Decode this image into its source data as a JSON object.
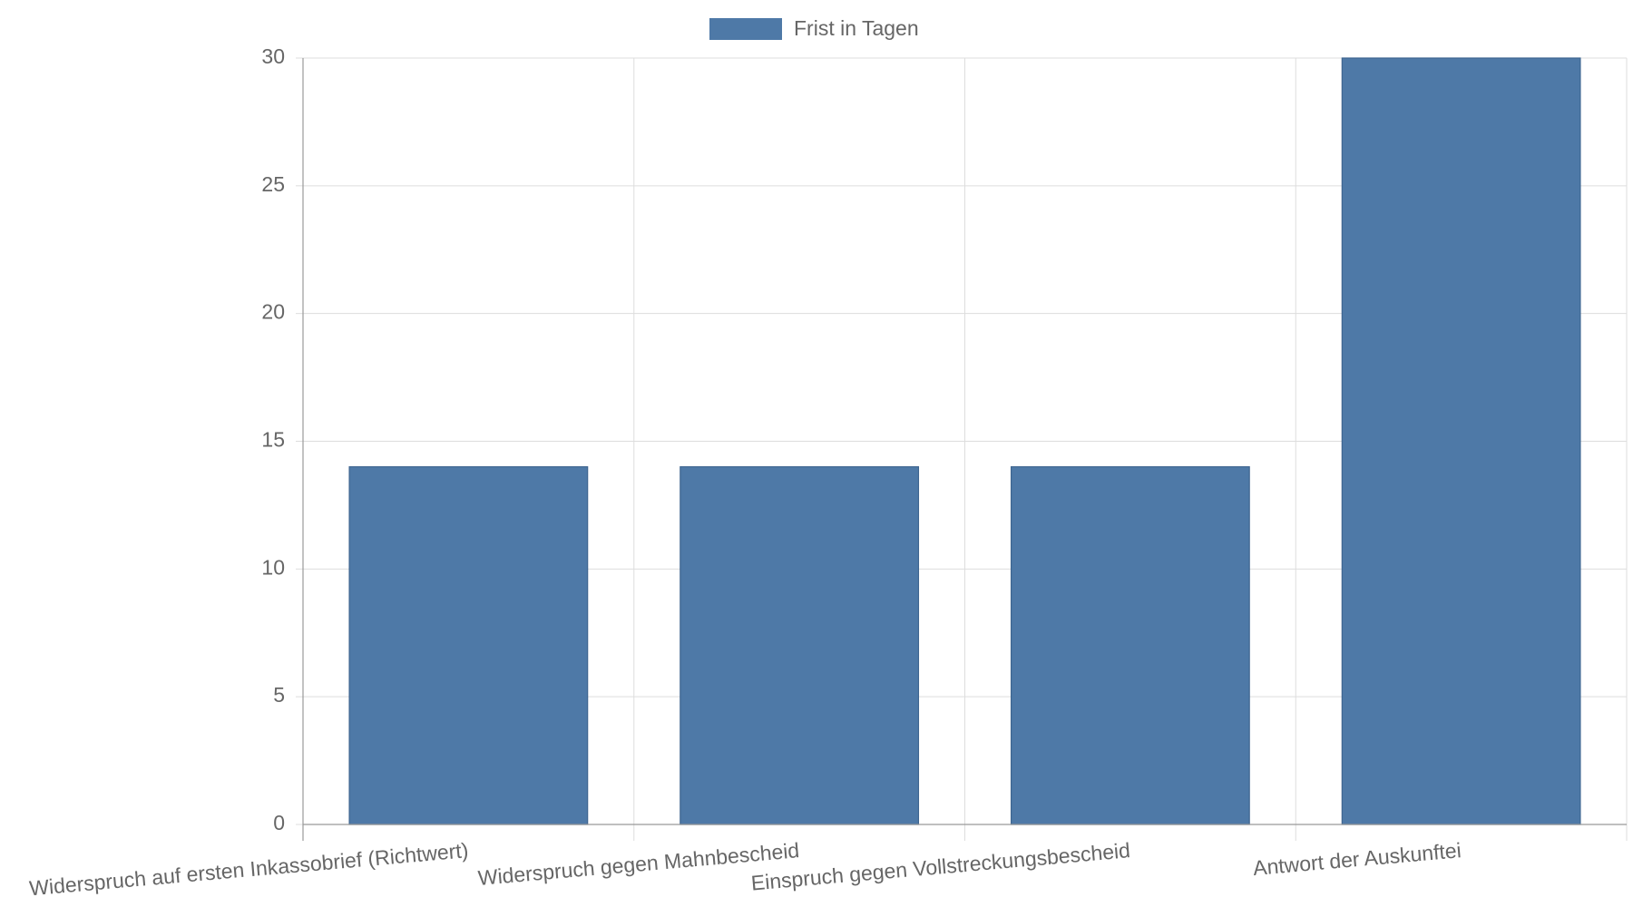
{
  "chart_data": {
    "type": "bar",
    "categories": [
      "Widerspruch auf ersten Inkassobrief (Richtwert)",
      "Widerspruch gegen Mahnbescheid",
      "Einspruch gegen Vollstreckungsbescheid",
      "Antwort der Auskunftei"
    ],
    "series": [
      {
        "name": "Frist in Tagen",
        "color": "#4e79a7",
        "values": [
          14,
          14,
          14,
          30
        ]
      }
    ],
    "ylim": [
      0,
      30
    ],
    "yticks": [
      0,
      5,
      10,
      15,
      20,
      25,
      30
    ],
    "grid": true,
    "legend": "top"
  }
}
